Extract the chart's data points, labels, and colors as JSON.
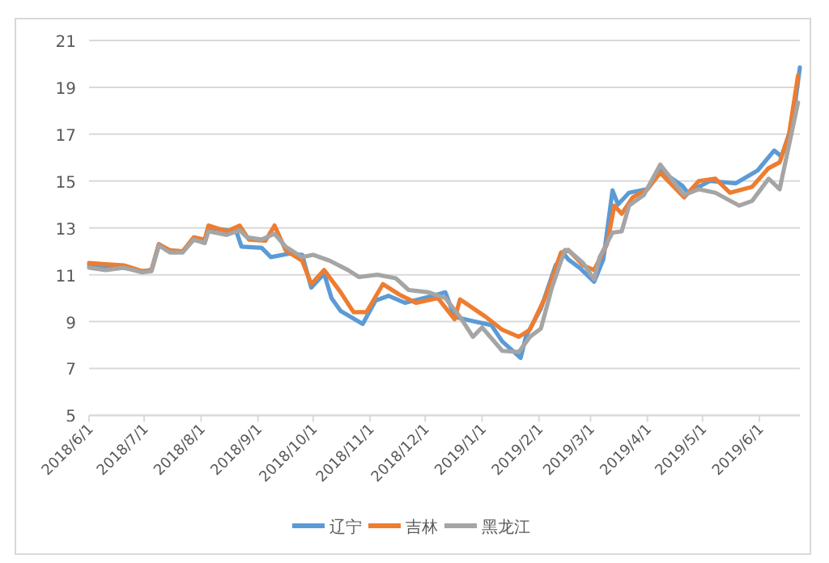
{
  "chart_data": {
    "type": "line",
    "xlim": [
      "2018-06-01",
      "2019-06-23"
    ],
    "ylim": [
      5,
      21
    ],
    "yticks": [
      5,
      7,
      9,
      11,
      13,
      15,
      17,
      19,
      21
    ],
    "xticks": [
      {
        "value": "2018-06-01",
        "label": "2018/6/1"
      },
      {
        "value": "2018-07-01",
        "label": "2018/7/1"
      },
      {
        "value": "2018-08-01",
        "label": "2018/8/1"
      },
      {
        "value": "2018-09-01",
        "label": "2018/9/1"
      },
      {
        "value": "2018-10-01",
        "label": "2018/10/1"
      },
      {
        "value": "2018-11-01",
        "label": "2018/11/1"
      },
      {
        "value": "2018-12-01",
        "label": "2018/12/1"
      },
      {
        "value": "2019-01-01",
        "label": "2019/1/1"
      },
      {
        "value": "2019-02-01",
        "label": "2019/2/1"
      },
      {
        "value": "2019-03-01",
        "label": "2019/3/1"
      },
      {
        "value": "2019-04-01",
        "label": "2019/4/1"
      },
      {
        "value": "2019-05-01",
        "label": "2019/5/1"
      },
      {
        "value": "2019-06-01",
        "label": "2019/6/1"
      }
    ],
    "grid": "y",
    "legend": "bottom",
    "series": [
      {
        "name": "辽宁",
        "color": "#5b9bd5",
        "x": [
          "2018-06-01",
          "2018-06-10",
          "2018-06-20",
          "2018-06-30",
          "2018-07-05",
          "2018-07-09",
          "2018-07-15",
          "2018-07-22",
          "2018-07-28",
          "2018-08-03",
          "2018-08-05",
          "2018-08-15",
          "2018-08-20",
          "2018-08-23",
          "2018-09-03",
          "2018-09-08",
          "2018-09-18",
          "2018-09-25",
          "2018-09-30",
          "2018-10-07",
          "2018-10-11",
          "2018-10-16",
          "2018-10-28",
          "2018-11-04",
          "2018-11-11",
          "2018-11-20",
          "2018-12-05",
          "2018-12-12",
          "2018-12-17",
          "2018-12-28",
          "2019-01-06",
          "2019-01-12",
          "2019-01-22",
          "2019-01-25",
          "2019-02-02",
          "2019-02-10",
          "2019-02-15",
          "2019-02-17",
          "2019-02-23",
          "2019-03-03",
          "2019-03-08",
          "2019-03-13",
          "2019-03-16",
          "2019-03-22",
          "2019-04-01",
          "2019-04-08",
          "2019-04-20",
          "2019-04-23",
          "2019-05-05",
          "2019-05-19",
          "2019-05-31",
          "2019-06-09",
          "2019-06-13",
          "2019-06-19",
          "2019-06-23"
        ],
        "values": [
          11.4,
          11.3,
          11.3,
          11.15,
          11.2,
          12.3,
          12.0,
          12.0,
          12.5,
          12.4,
          13.0,
          12.9,
          12.9,
          12.2,
          12.15,
          11.75,
          11.9,
          11.85,
          10.45,
          11.05,
          10.0,
          9.45,
          8.9,
          9.9,
          10.1,
          9.8,
          10.1,
          10.25,
          9.2,
          9.0,
          8.85,
          8.15,
          7.45,
          8.4,
          9.55,
          11.4,
          11.85,
          11.65,
          11.3,
          10.7,
          11.65,
          14.6,
          14.0,
          14.5,
          14.65,
          15.45,
          14.8,
          14.5,
          15.0,
          14.9,
          15.45,
          16.3,
          16.05,
          17.45,
          19.85
        ]
      },
      {
        "name": "吉林",
        "color": "#ed7d31",
        "x": [
          "2018-06-01",
          "2018-06-10",
          "2018-06-20",
          "2018-06-30",
          "2018-07-05",
          "2018-07-09",
          "2018-07-15",
          "2018-07-22",
          "2018-07-28",
          "2018-08-03",
          "2018-08-05",
          "2018-08-15",
          "2018-08-22",
          "2018-08-27",
          "2018-09-05",
          "2018-09-10",
          "2018-09-16",
          "2018-09-25",
          "2018-09-30",
          "2018-10-07",
          "2018-10-16",
          "2018-10-23",
          "2018-10-30",
          "2018-11-08",
          "2018-11-17",
          "2018-11-26",
          "2018-12-08",
          "2018-12-17",
          "2018-12-20",
          "2019-01-03",
          "2019-01-12",
          "2019-01-21",
          "2019-01-27",
          "2019-02-05",
          "2019-02-13",
          "2019-02-17",
          "2019-02-25",
          "2019-03-03",
          "2019-03-10",
          "2019-03-14",
          "2019-03-18",
          "2019-03-24",
          "2019-04-01",
          "2019-04-08",
          "2019-04-21",
          "2019-04-29",
          "2019-05-08",
          "2019-05-16",
          "2019-05-28",
          "2019-06-06",
          "2019-06-12",
          "2019-06-17",
          "2019-06-22"
        ],
        "values": [
          11.5,
          11.45,
          11.4,
          11.15,
          11.2,
          12.3,
          12.05,
          12.0,
          12.6,
          12.5,
          13.1,
          12.85,
          13.1,
          12.5,
          12.45,
          13.1,
          12.05,
          11.6,
          10.6,
          11.2,
          10.25,
          9.4,
          9.4,
          10.6,
          10.15,
          9.8,
          10.0,
          9.1,
          9.95,
          9.2,
          8.65,
          8.35,
          8.65,
          10.15,
          11.95,
          12.05,
          11.4,
          11.2,
          12.3,
          13.95,
          13.6,
          14.3,
          14.65,
          15.35,
          14.3,
          15.0,
          15.1,
          14.5,
          14.75,
          15.55,
          15.8,
          16.95,
          19.5
        ]
      },
      {
        "name": "黑龙江",
        "color": "#a5a5a5",
        "x": [
          "2018-06-01",
          "2018-06-10",
          "2018-06-20",
          "2018-06-30",
          "2018-07-05",
          "2018-07-09",
          "2018-07-15",
          "2018-07-22",
          "2018-07-28",
          "2018-08-03",
          "2018-08-05",
          "2018-08-15",
          "2018-08-22",
          "2018-08-26",
          "2018-09-03",
          "2018-09-10",
          "2018-09-16",
          "2018-09-25",
          "2018-10-01",
          "2018-10-10",
          "2018-10-20",
          "2018-10-26",
          "2018-11-05",
          "2018-11-15",
          "2018-11-22",
          "2018-12-03",
          "2018-12-12",
          "2018-12-20",
          "2018-12-27",
          "2019-01-01",
          "2019-01-12",
          "2019-01-21",
          "2019-01-27",
          "2019-02-02",
          "2019-02-08",
          "2019-02-15",
          "2019-02-17",
          "2019-02-25",
          "2019-03-03",
          "2019-03-06",
          "2019-03-13",
          "2019-03-18",
          "2019-03-22",
          "2019-03-30",
          "2019-04-08",
          "2019-04-21",
          "2019-04-29",
          "2019-05-08",
          "2019-05-21",
          "2019-05-28",
          "2019-06-06",
          "2019-06-12",
          "2019-06-17",
          "2019-06-22"
        ],
        "values": [
          11.3,
          11.2,
          11.3,
          11.1,
          11.15,
          12.25,
          11.95,
          11.95,
          12.5,
          12.35,
          12.85,
          12.7,
          12.9,
          12.6,
          12.5,
          12.75,
          12.2,
          11.75,
          11.85,
          11.6,
          11.2,
          10.9,
          11.0,
          10.85,
          10.35,
          10.25,
          10.0,
          9.2,
          8.35,
          8.75,
          7.75,
          7.7,
          8.35,
          8.7,
          10.45,
          12.05,
          12.05,
          11.5,
          10.8,
          11.75,
          12.8,
          12.85,
          13.95,
          14.4,
          15.7,
          14.4,
          14.65,
          14.5,
          13.95,
          14.15,
          15.1,
          14.65,
          16.5,
          18.35
        ]
      }
    ]
  }
}
